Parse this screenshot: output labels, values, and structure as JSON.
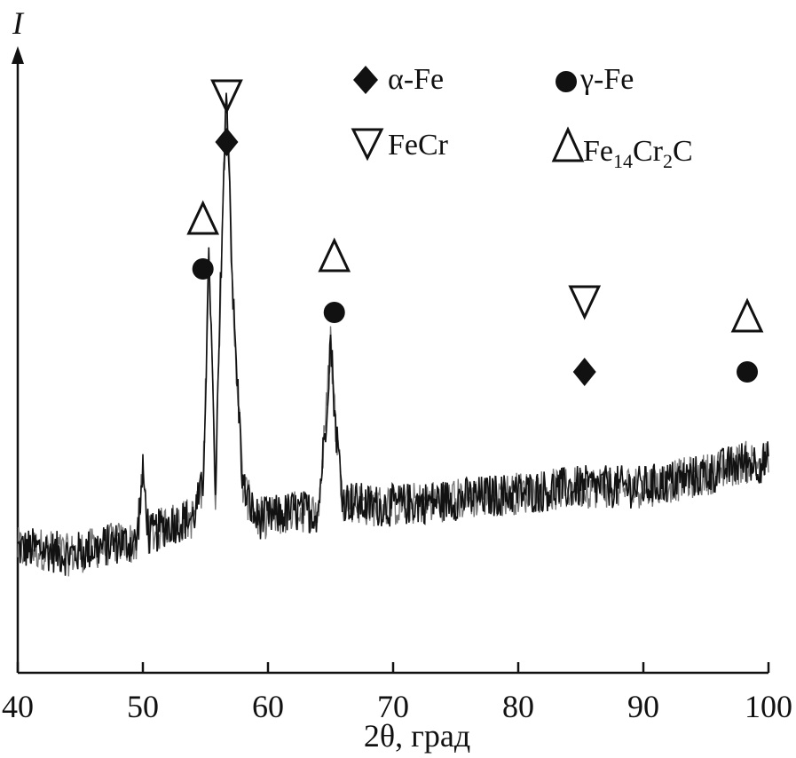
{
  "chart_data": {
    "type": "line",
    "xlabel": "2θ, град",
    "ylabel": "I",
    "xlim": [
      40,
      100
    ],
    "ylim": [
      0,
      100
    ],
    "xticks": [
      40,
      50,
      60,
      70,
      80,
      90,
      100
    ],
    "grid": false,
    "y_tick_labels": false,
    "legend": {
      "placement": "top-right",
      "entries": [
        {
          "marker": "diamond",
          "label": "α-Fe"
        },
        {
          "marker": "circle",
          "label": "γ-Fe"
        },
        {
          "marker": "down-triangle",
          "label": "FeCr"
        },
        {
          "marker": "up-triangle",
          "label_main": "Fe",
          "label_sub1": "14",
          "label_mid": "Cr",
          "label_sub2": "2",
          "label_end": "C"
        }
      ]
    },
    "series": [
      {
        "x": [
          40,
          42,
          44,
          46,
          48,
          49.5,
          50,
          50.5,
          52,
          54,
          54.8,
          55.3,
          55.8,
          56.3,
          56.7,
          57.2,
          58,
          59,
          60,
          62,
          64,
          64.6,
          65,
          65.4,
          66,
          68,
          70,
          75,
          80,
          85,
          90,
          95,
          98,
          100
        ],
        "y": [
          20,
          20,
          19,
          20,
          21,
          21,
          32,
          22,
          24,
          25,
          30,
          68,
          28,
          70,
          95,
          60,
          30,
          25,
          25,
          26,
          26,
          40,
          54,
          40,
          28,
          27,
          27,
          28,
          29,
          30,
          30,
          32,
          34,
          34
        ],
        "noise": 3.5
      }
    ],
    "annotations": [
      {
        "x": 54.8,
        "markers": [
          "up-triangle",
          "circle"
        ]
      },
      {
        "x": 56.7,
        "markers": [
          "down-triangle",
          "diamond"
        ]
      },
      {
        "x": 65.3,
        "markers": [
          "up-triangle",
          "circle"
        ]
      },
      {
        "x": 85.3,
        "markers": [
          "down-triangle",
          "diamond"
        ]
      },
      {
        "x": 98.3,
        "markers": [
          "up-triangle",
          "circle"
        ]
      }
    ]
  }
}
